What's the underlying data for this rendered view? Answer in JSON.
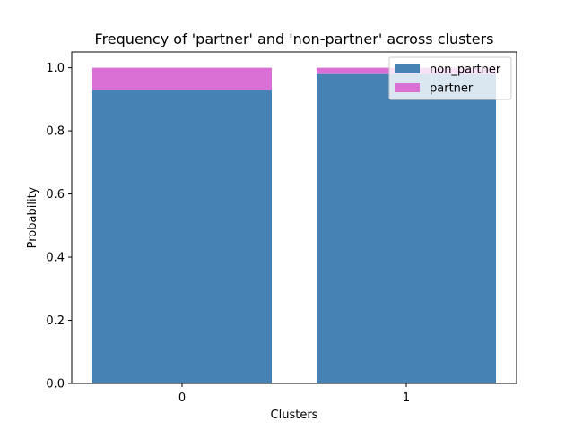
{
  "chart_data": {
    "type": "bar",
    "stacked": true,
    "title": "Frequency of 'partner' and 'non-partner' across clusters",
    "xlabel": "Clusters",
    "ylabel": "Probability",
    "categories": [
      "0",
      "1"
    ],
    "ylim": [
      0,
      1.05
    ],
    "yticks": [
      "0.0",
      "0.2",
      "0.4",
      "0.6",
      "0.8",
      "1.0"
    ],
    "grid": false,
    "legend_position": "top-right",
    "series": [
      {
        "name": "non_partner",
        "values": [
          0.93,
          0.98
        ],
        "color": "#4682b4"
      },
      {
        "name": "partner",
        "values": [
          0.07,
          0.02
        ],
        "color": "#da70d6"
      }
    ]
  }
}
